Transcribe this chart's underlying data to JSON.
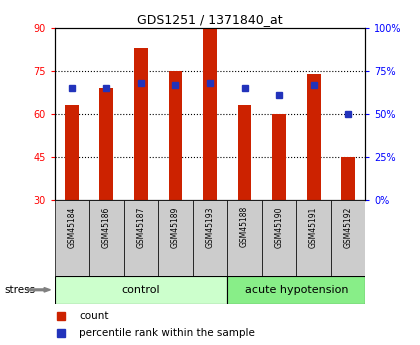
{
  "title": "GDS1251 / 1371840_at",
  "samples": [
    "GSM45184",
    "GSM45186",
    "GSM45187",
    "GSM45189",
    "GSM45193",
    "GSM45188",
    "GSM45190",
    "GSM45191",
    "GSM45192"
  ],
  "bar_bottom": 30,
  "bar_tops": [
    63,
    69,
    83,
    75,
    90,
    63,
    60,
    74,
    45
  ],
  "percentile_values": [
    65,
    65,
    68,
    67,
    68,
    65,
    61,
    67,
    50
  ],
  "ylim_left": [
    30,
    90
  ],
  "ylim_right": [
    0,
    100
  ],
  "yticks_left": [
    30,
    45,
    60,
    75,
    90
  ],
  "yticks_right": [
    0,
    25,
    50,
    75,
    100
  ],
  "yticklabels_right": [
    "0%",
    "25%",
    "50%",
    "75%",
    "100%"
  ],
  "bar_color": "#cc2200",
  "dot_color": "#2233bb",
  "bg_color": "#ffffff",
  "tick_area_color": "#cccccc",
  "control_color": "#ccffcc",
  "acute_color": "#88ee88",
  "control_label": "control",
  "acute_label": "acute hypotension",
  "stress_label": "stress",
  "legend_count": "count",
  "legend_pct": "percentile rank within the sample",
  "n_control": 5,
  "n_acute": 4
}
